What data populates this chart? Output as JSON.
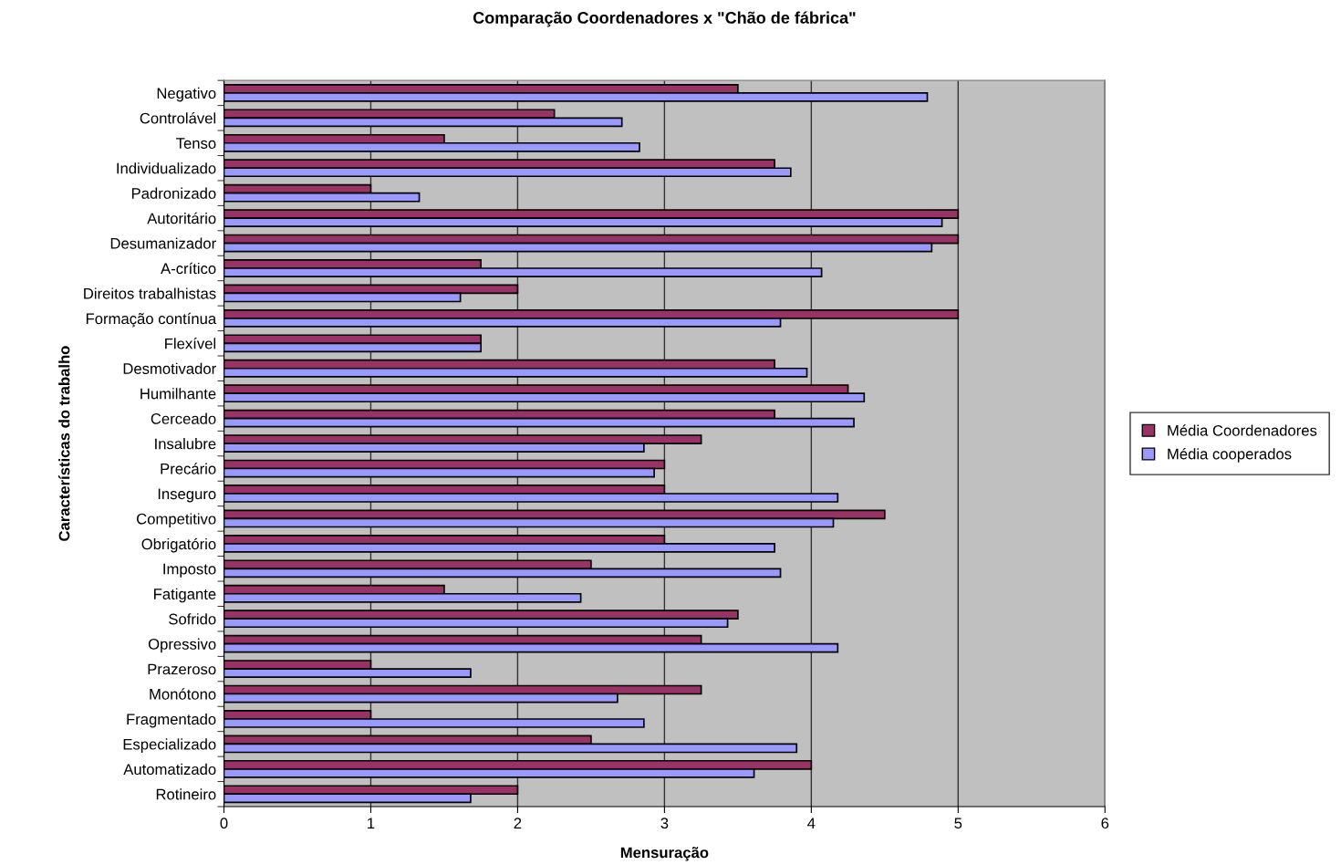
{
  "chart_data": {
    "type": "bar",
    "orientation": "horizontal",
    "title": "Comparação Coordenadores x \"Chão de fábrica\"",
    "xlabel": "Mensuração",
    "ylabel": "Características do trabalho",
    "categories": [
      "Negativo",
      "Controlável",
      "Tenso",
      "Individualizado",
      "Padronizado",
      "Autoritário",
      "Desumanizador",
      "A-crítico",
      "Direitos trabalhistas",
      "Formação contínua",
      "Flexível",
      "Desmotivador",
      "Humilhante",
      "Cerceado",
      "Insalubre",
      "Precário",
      "Inseguro",
      "Competitivo",
      "Obrigatório",
      "Imposto",
      "Fatigante",
      "Sofrido",
      "Opressivo",
      "Prazeroso",
      "Monótono",
      "Fragmentado",
      "Especializado",
      "Automatizado",
      "Rotineiro"
    ],
    "series": [
      {
        "name": "Média Coordenadores",
        "color": "#993366",
        "values": [
          3.5,
          2.25,
          1.5,
          3.75,
          1.0,
          5.0,
          5.0,
          1.75,
          2.0,
          5.0,
          1.75,
          3.75,
          4.25,
          3.75,
          3.25,
          3.0,
          3.0,
          4.5,
          3.0,
          2.5,
          1.5,
          3.5,
          3.25,
          1.0,
          3.25,
          1.0,
          2.5,
          4.0,
          2.0
        ]
      },
      {
        "name": "Média cooperados",
        "color": "#9999ff",
        "values": [
          4.79,
          2.71,
          2.83,
          3.86,
          1.33,
          4.89,
          4.82,
          4.07,
          1.61,
          3.79,
          1.75,
          3.97,
          4.36,
          4.29,
          2.86,
          2.93,
          4.18,
          4.15,
          3.75,
          3.79,
          2.43,
          3.43,
          4.18,
          1.68,
          2.68,
          2.86,
          3.9,
          3.61,
          1.68
        ]
      }
    ],
    "xlim": [
      0,
      6
    ],
    "xticks": [
      0,
      1,
      2,
      3,
      4,
      5,
      6
    ],
    "grid": "x",
    "legend": "right"
  }
}
